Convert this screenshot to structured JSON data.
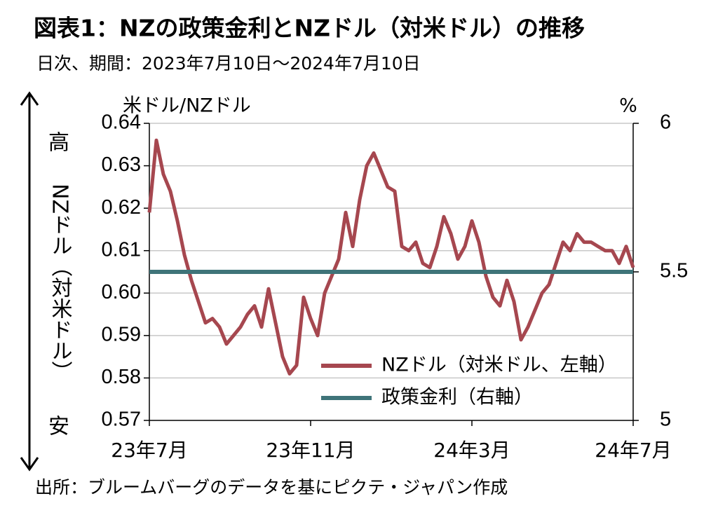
{
  "chart_data": {
    "type": "line",
    "title": "図表1：NZの政策金利とNZドル（対米ドル）の推移",
    "subtitle": "日次、期間：2023年7月10日～2024年7月10日",
    "source": "出所：ブルームバーグのデータを基にピクテ・ジャパン作成",
    "y_label": "米ドル/NZドル",
    "y2_label": "%",
    "direction_labels": {
      "high": "高",
      "axis_text": "NZドル（対米ドル）",
      "low": "安"
    },
    "categories": [
      "23年7月",
      null,
      null,
      null,
      null,
      null,
      null,
      null,
      null,
      null,
      null,
      null,
      null,
      null,
      null,
      null,
      null,
      null,
      null,
      null,
      null,
      null,
      null,
      "23年11月",
      null,
      null,
      null,
      null,
      null,
      null,
      null,
      null,
      null,
      null,
      null,
      null,
      null,
      null,
      null,
      null,
      null,
      null,
      null,
      null,
      null,
      null,
      "24年3月",
      null,
      null,
      null,
      null,
      null,
      null,
      null,
      null,
      null,
      null,
      null,
      null,
      null,
      null,
      null,
      null,
      null,
      null,
      null,
      null,
      null,
      null,
      "24年7月"
    ],
    "series": [
      {
        "name": "NZドル（対米ドル、左軸）",
        "color": "#a6474f",
        "axis": "y",
        "values": [
          0.619,
          0.636,
          0.628,
          0.624,
          0.617,
          0.609,
          0.603,
          0.598,
          0.593,
          0.594,
          0.592,
          0.588,
          0.59,
          0.592,
          0.595,
          0.597,
          0.592,
          0.601,
          0.593,
          0.585,
          0.581,
          0.583,
          0.599,
          0.594,
          0.59,
          0.6,
          0.604,
          0.608,
          0.619,
          0.611,
          0.622,
          0.63,
          0.633,
          0.629,
          0.625,
          0.624,
          0.611,
          0.61,
          0.612,
          0.607,
          0.606,
          0.611,
          0.618,
          0.614,
          0.608,
          0.611,
          0.617,
          0.612,
          0.604,
          0.599,
          0.597,
          0.603,
          0.598,
          0.589,
          0.592,
          0.596,
          0.6,
          0.602,
          0.607,
          0.612,
          0.61,
          0.614,
          0.612,
          0.612,
          0.611,
          0.61,
          0.61,
          0.607,
          0.611,
          0.606
        ]
      },
      {
        "name": "政策金利（右軸）",
        "color": "#3f7479",
        "axis": "y2",
        "values": [
          5.5,
          5.5,
          5.5,
          5.5,
          5.5,
          5.5,
          5.5,
          5.5,
          5.5,
          5.5,
          5.5,
          5.5,
          5.5,
          5.5,
          5.5,
          5.5,
          5.5,
          5.5,
          5.5,
          5.5,
          5.5,
          5.5,
          5.5,
          5.5,
          5.5,
          5.5,
          5.5,
          5.5,
          5.5,
          5.5,
          5.5,
          5.5,
          5.5,
          5.5,
          5.5,
          5.5,
          5.5,
          5.5,
          5.5,
          5.5,
          5.5,
          5.5,
          5.5,
          5.5,
          5.5,
          5.5,
          5.5,
          5.5,
          5.5,
          5.5,
          5.5,
          5.5,
          5.5,
          5.5,
          5.5,
          5.5,
          5.5,
          5.5,
          5.5,
          5.5,
          5.5,
          5.5,
          5.5,
          5.5,
          5.5,
          5.5,
          5.5,
          5.5,
          5.5,
          5.5
        ]
      }
    ],
    "ylim": [
      0.57,
      0.64
    ],
    "yticks": [
      0.57,
      0.58,
      0.59,
      {
        "value": 0.6,
        "label": "0.60"
      },
      0.61,
      0.62,
      0.63,
      0.64
    ],
    "y2lim": [
      5,
      6
    ],
    "y2ticks": [
      5,
      5.5,
      6
    ],
    "grid": true,
    "legend": "lower right"
  }
}
